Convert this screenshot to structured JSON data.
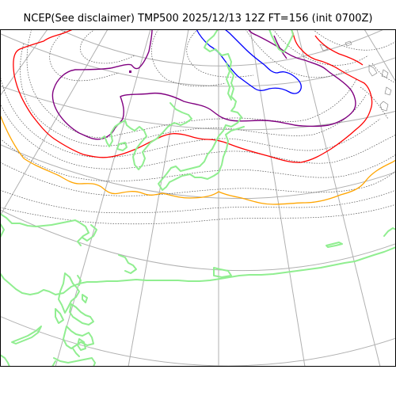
{
  "title": "NCEP(See disclaimer) TMP500 2025/12/13 12Z FT=156 (init 0700Z)",
  "colors": {
    "coastline": "#90ee90",
    "graticule": "#b0b0b0",
    "isotherm_minor": "#555555",
    "isotherm_blue": "#0000ff",
    "isotherm_purple": "#800080",
    "isotherm_red": "#ff0000",
    "isotherm_orange": "#ffa500",
    "frame": "#000000"
  }
}
